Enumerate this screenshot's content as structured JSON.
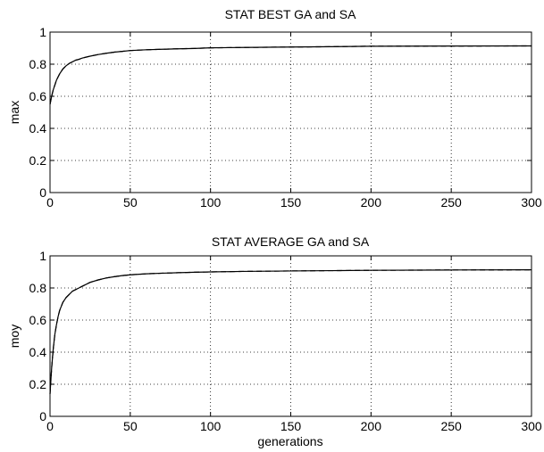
{
  "chart_data": [
    {
      "type": "line",
      "title": "STAT BEST GA and SA",
      "xlabel": "",
      "ylabel": "max",
      "xlim": [
        0,
        300
      ],
      "ylim": [
        0,
        1
      ],
      "xticks": [
        0,
        50,
        100,
        150,
        200,
        250,
        300
      ],
      "yticks": [
        0,
        0.2,
        0.4,
        0.6,
        0.8,
        1
      ],
      "xtick_labels": [
        "0",
        "50",
        "100",
        "150",
        "200",
        "250",
        "300"
      ],
      "ytick_labels": [
        "0",
        "0.2",
        "0.4",
        "0.6",
        "0.8",
        "1"
      ],
      "grid": true,
      "series": [
        {
          "style": "solid",
          "x": [
            0,
            1,
            2,
            3,
            4,
            5,
            6,
            8,
            10,
            12,
            14,
            16,
            18,
            20,
            25,
            30,
            35,
            40,
            45,
            50,
            60,
            70,
            80,
            90,
            100,
            120,
            150,
            175,
            200,
            250,
            300
          ],
          "y": [
            0.55,
            0.6,
            0.64,
            0.67,
            0.7,
            0.72,
            0.74,
            0.77,
            0.79,
            0.805,
            0.815,
            0.825,
            0.83,
            0.838,
            0.85,
            0.86,
            0.868,
            0.875,
            0.88,
            0.885,
            0.89,
            0.893,
            0.896,
            0.898,
            0.902,
            0.904,
            0.907,
            0.909,
            0.912,
            0.913,
            0.914
          ]
        },
        {
          "style": "dashed",
          "x": [
            0,
            1,
            2,
            3,
            4,
            5,
            6,
            8,
            10,
            12,
            14,
            16,
            18,
            20,
            25,
            30,
            35,
            40,
            45,
            50,
            60,
            70,
            80,
            90,
            100,
            120,
            150,
            175,
            200,
            250,
            300
          ],
          "y": [
            0.55,
            0.6,
            0.64,
            0.67,
            0.7,
            0.72,
            0.74,
            0.77,
            0.79,
            0.805,
            0.815,
            0.825,
            0.83,
            0.838,
            0.85,
            0.86,
            0.868,
            0.875,
            0.88,
            0.885,
            0.89,
            0.893,
            0.896,
            0.898,
            0.902,
            0.904,
            0.907,
            0.909,
            0.912,
            0.913,
            0.914
          ]
        }
      ]
    },
    {
      "type": "line",
      "title": "STAT AVERAGE GA and SA",
      "xlabel": "generations",
      "ylabel": "moy",
      "xlim": [
        0,
        300
      ],
      "ylim": [
        0,
        1
      ],
      "xticks": [
        0,
        50,
        100,
        150,
        200,
        250,
        300
      ],
      "yticks": [
        0,
        0.2,
        0.4,
        0.6,
        0.8,
        1
      ],
      "xtick_labels": [
        "0",
        "50",
        "100",
        "150",
        "200",
        "250",
        "300"
      ],
      "ytick_labels": [
        "0",
        "0.2",
        "0.4",
        "0.6",
        "0.8",
        "1"
      ],
      "grid": true,
      "series": [
        {
          "style": "solid",
          "x": [
            0,
            1,
            2,
            3,
            4,
            5,
            6,
            8,
            10,
            12,
            14,
            16,
            18,
            20,
            25,
            30,
            35,
            40,
            45,
            50,
            60,
            70,
            80,
            90,
            100,
            120,
            150,
            175,
            200,
            250,
            300
          ],
          "y": [
            0.14,
            0.3,
            0.42,
            0.51,
            0.57,
            0.62,
            0.66,
            0.71,
            0.74,
            0.76,
            0.78,
            0.79,
            0.8,
            0.81,
            0.835,
            0.85,
            0.862,
            0.87,
            0.877,
            0.882,
            0.888,
            0.892,
            0.895,
            0.898,
            0.9,
            0.903,
            0.906,
            0.908,
            0.91,
            0.912,
            0.913
          ]
        },
        {
          "style": "dashed",
          "x": [
            0,
            1,
            2,
            3,
            4,
            5,
            6,
            8,
            10,
            12,
            14,
            16,
            18,
            20,
            25,
            30,
            35,
            40,
            45,
            50,
            60,
            70,
            80,
            90,
            100,
            120,
            150,
            175,
            200,
            250,
            300
          ],
          "y": [
            0.14,
            0.3,
            0.42,
            0.51,
            0.57,
            0.62,
            0.66,
            0.71,
            0.74,
            0.76,
            0.78,
            0.79,
            0.8,
            0.81,
            0.835,
            0.85,
            0.862,
            0.87,
            0.877,
            0.882,
            0.888,
            0.892,
            0.895,
            0.898,
            0.9,
            0.903,
            0.906,
            0.908,
            0.91,
            0.912,
            0.913
          ]
        }
      ]
    }
  ]
}
